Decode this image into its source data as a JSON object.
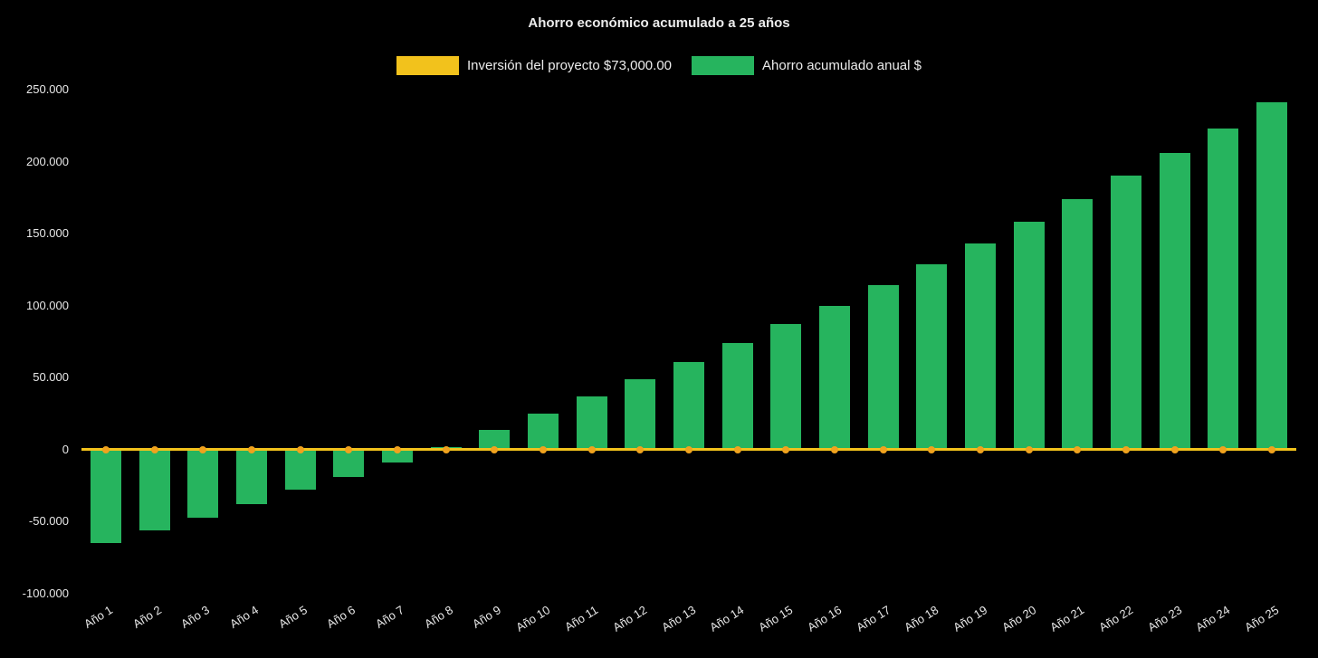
{
  "chart_data": {
    "type": "bar",
    "title": "Ahorro económico acumulado a 25 años",
    "background_color": "#000000",
    "text_color": "#e8e8e8",
    "grid": false,
    "legend_position": "top",
    "xlabel": "",
    "ylabel": "",
    "ylim": [
      -100000,
      250000
    ],
    "yticks": [
      {
        "value": 250000,
        "label": "250.000"
      },
      {
        "value": 200000,
        "label": "200.000"
      },
      {
        "value": 150000,
        "label": "150.000"
      },
      {
        "value": 100000,
        "label": "100.000"
      },
      {
        "value": 50000,
        "label": "50.000"
      },
      {
        "value": 0,
        "label": "0"
      },
      {
        "value": -50000,
        "label": "-50.000"
      },
      {
        "value": -100000,
        "label": "-100.000"
      }
    ],
    "categories": [
      "Año 1",
      "Año 2",
      "Año 3",
      "Año 4",
      "Año 5",
      "Año 6",
      "Año 7",
      "Año 8",
      "Año 9",
      "Año 10",
      "Año 11",
      "Año 12",
      "Año 13",
      "Año 14",
      "Año 15",
      "Año 16",
      "Año 17",
      "Año 18",
      "Año 19",
      "Año 20",
      "Año 21",
      "Año 22",
      "Año 23",
      "Año 24",
      "Año 25"
    ],
    "series": [
      {
        "name": "Inversión del proyecto $73,000.00",
        "type": "line",
        "color": "#f2c21c",
        "marker_color": "#f0a21e",
        "values": [
          0,
          0,
          0,
          0,
          0,
          0,
          0,
          0,
          0,
          0,
          0,
          0,
          0,
          0,
          0,
          0,
          0,
          0,
          0,
          0,
          0,
          0,
          0,
          0,
          0
        ]
      },
      {
        "name": "Ahorro acumulado anual $",
        "type": "bar",
        "color": "#26b45e",
        "values": [
          -65000,
          -56000,
          -47000,
          -38000,
          -28000,
          -19000,
          -9000,
          2000,
          14000,
          25000,
          37000,
          49000,
          61000,
          74000,
          87000,
          100000,
          114000,
          129000,
          143000,
          158000,
          174000,
          190000,
          206000,
          223000,
          241000
        ]
      }
    ]
  }
}
